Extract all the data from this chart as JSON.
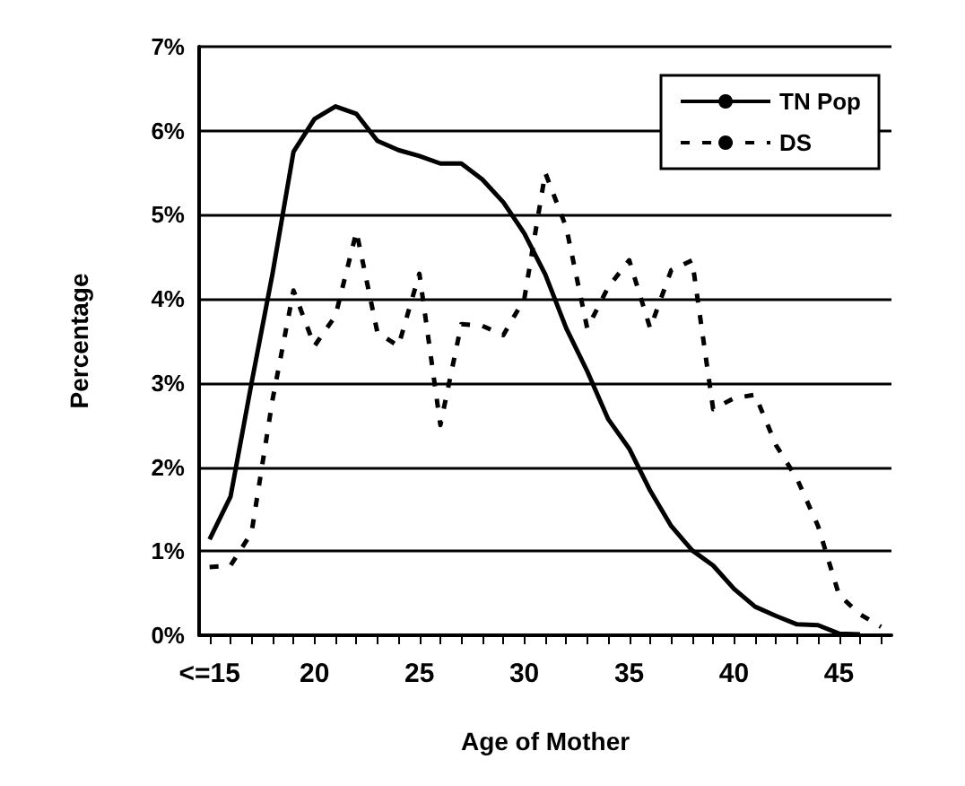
{
  "chart_data": {
    "type": "line",
    "xlabel": "Age of Mother",
    "ylabel": "Percentage",
    "categories": [
      "<=15",
      null,
      null,
      null,
      null,
      "20",
      null,
      null,
      null,
      null,
      "25",
      null,
      null,
      null,
      null,
      "30",
      null,
      null,
      null,
      null,
      "35",
      null,
      null,
      null,
      null,
      "40",
      null,
      null,
      null,
      null,
      "45",
      null,
      null
    ],
    "series": [
      {
        "name": "TN Pop",
        "color": "#000000",
        "line_style": "solid",
        "values": [
          1.14,
          1.65,
          3.0,
          4.3,
          5.75,
          6.14,
          6.29,
          6.2,
          5.88,
          5.77,
          5.7,
          5.61,
          5.61,
          5.42,
          5.15,
          4.78,
          4.29,
          3.65,
          3.14,
          2.57,
          2.22,
          1.72,
          1.3,
          1.01,
          0.83,
          0.55,
          0.34,
          0.23,
          0.13,
          0.12,
          0.02,
          0.01,
          null
        ]
      },
      {
        "name": "DS",
        "color": "#000000",
        "line_style": "dashed",
        "values": [
          0.81,
          0.83,
          1.22,
          2.8,
          4.1,
          3.44,
          3.8,
          4.8,
          3.6,
          3.44,
          4.3,
          2.5,
          3.7,
          3.68,
          3.57,
          4.0,
          5.5,
          4.85,
          3.65,
          4.14,
          4.46,
          3.65,
          4.34,
          4.46,
          2.69,
          2.82,
          2.86,
          2.26,
          1.86,
          1.3,
          0.48,
          0.25,
          0.1
        ]
      }
    ],
    "ylim": [
      0,
      7
    ],
    "yticks": [
      {
        "value": 0,
        "label": "0%"
      },
      {
        "value": 1,
        "label": "1%"
      },
      {
        "value": 2,
        "label": "2%"
      },
      {
        "value": 3,
        "label": "3%"
      },
      {
        "value": 4,
        "label": "4%"
      },
      {
        "value": 5,
        "label": "5%"
      },
      {
        "value": 6,
        "label": "6%"
      },
      {
        "value": 7,
        "label": "7%"
      }
    ],
    "grid": "y",
    "legend": "top right",
    "marker": "none"
  }
}
